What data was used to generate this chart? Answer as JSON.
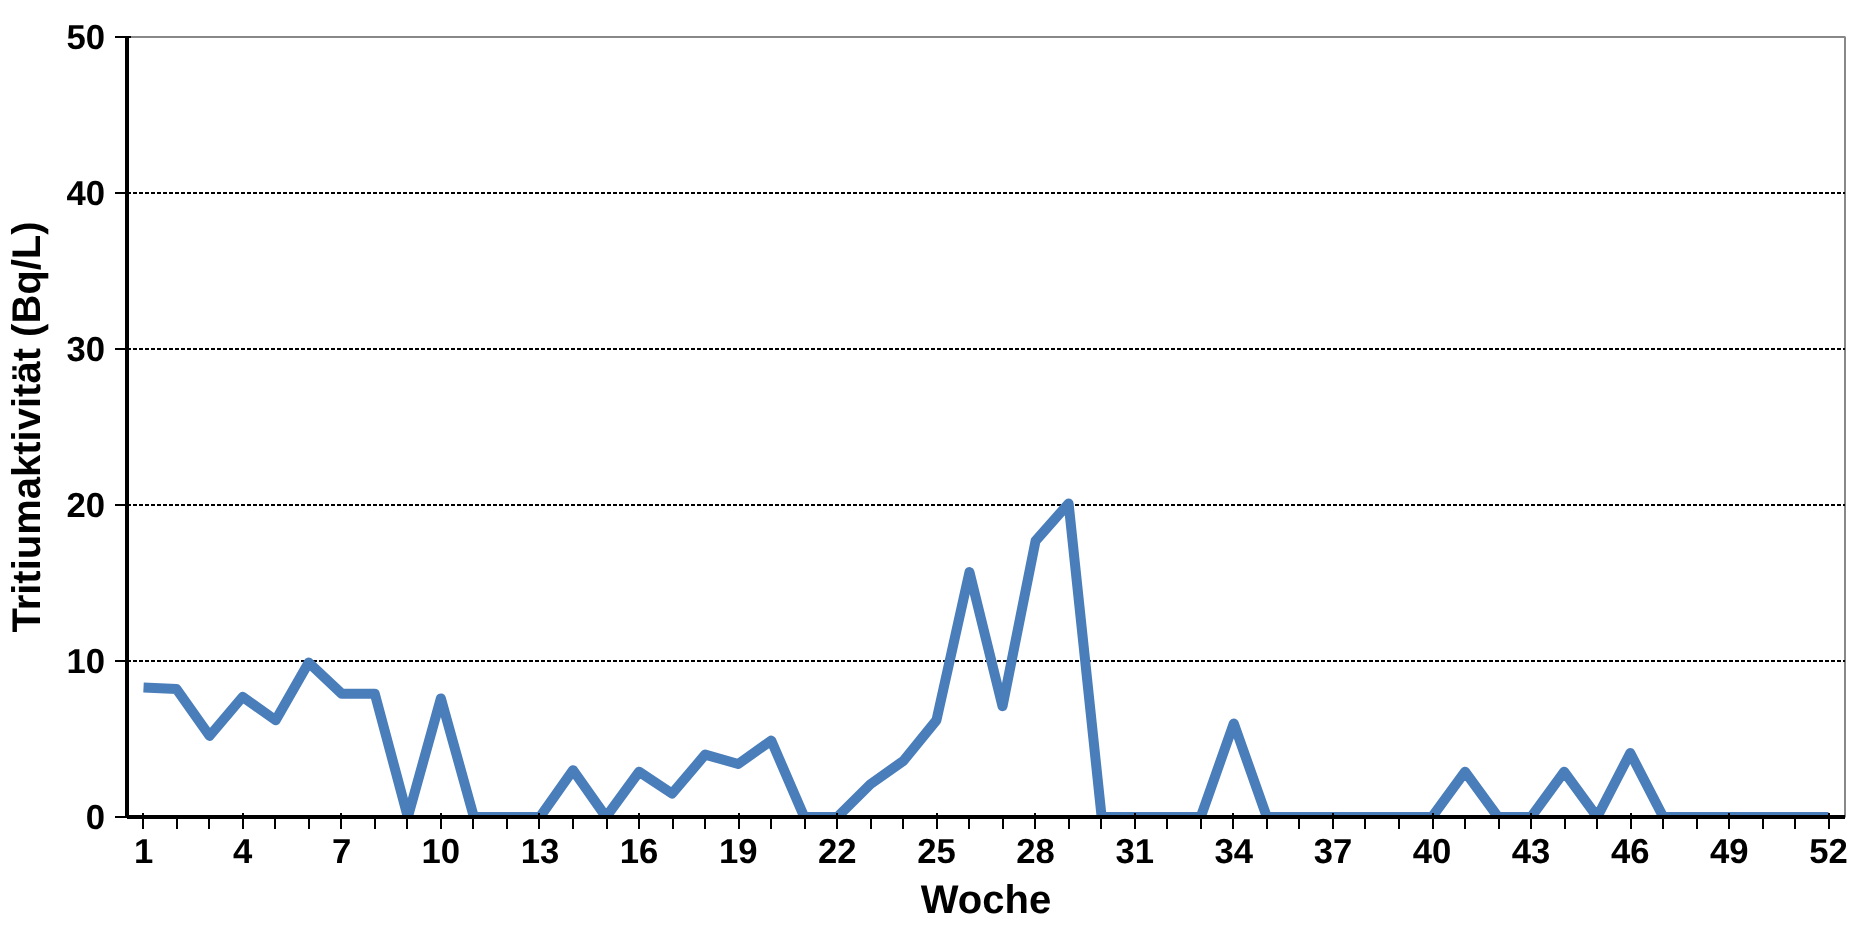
{
  "chart_data": {
    "type": "line",
    "xlabel": "Woche",
    "ylabel": "Tritiumaktivität (Bq/L)",
    "x": [
      1,
      2,
      3,
      4,
      5,
      6,
      7,
      8,
      9,
      10,
      11,
      12,
      13,
      14,
      15,
      16,
      17,
      18,
      19,
      20,
      21,
      22,
      23,
      24,
      25,
      26,
      27,
      28,
      29,
      30,
      31,
      32,
      33,
      34,
      35,
      36,
      37,
      38,
      39,
      40,
      41,
      42,
      43,
      44,
      45,
      46,
      47,
      48,
      49,
      50,
      51,
      52
    ],
    "series": [
      {
        "color": "#4a7ebb",
        "values": [
          8.3,
          8.2,
          5.2,
          7.7,
          6.2,
          9.9,
          7.9,
          7.9,
          0,
          7.6,
          0,
          0,
          0,
          3,
          0,
          2.9,
          1.5,
          4,
          3.4,
          4.9,
          0,
          0,
          2.1,
          3.6,
          6.2,
          15.7,
          7.1,
          17.7,
          20.1,
          0,
          0,
          0,
          0,
          6,
          0,
          0,
          0,
          0,
          0,
          0,
          2.9,
          0,
          0,
          2.9,
          0,
          4.1,
          0,
          0,
          0,
          0,
          0,
          0
        ]
      }
    ],
    "xlim": [
      0.5,
      52.5
    ],
    "xticks": [
      1,
      4,
      7,
      10,
      13,
      16,
      19,
      22,
      25,
      28,
      31,
      34,
      37,
      40,
      43,
      46,
      49,
      52
    ],
    "ylim": [
      0,
      50
    ],
    "yticks": [
      0,
      10,
      20,
      30,
      40,
      50
    ],
    "grid": "y",
    "marker": "none",
    "line_style": "solid"
  }
}
